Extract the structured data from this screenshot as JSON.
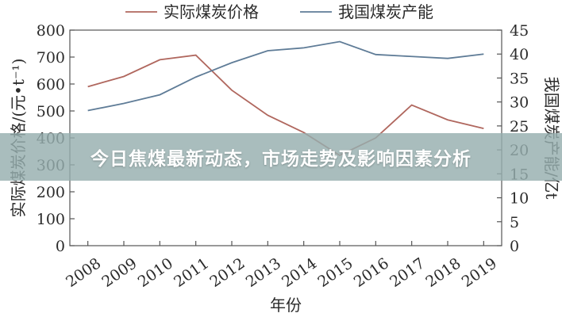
{
  "banner": {
    "title": "今日焦煤最新动态，市场走势及影响因素分析"
  },
  "chart_data": {
    "type": "line",
    "categories": [
      "2008",
      "2009",
      "2010",
      "2011",
      "2012",
      "2013",
      "2014",
      "2015",
      "2016",
      "2017",
      "2018",
      "2019"
    ],
    "series": [
      {
        "name": "实际煤炭价格",
        "axis": "left",
        "color": "#b0675e",
        "values": [
          590,
          628,
          690,
          707,
          577,
          484,
          420,
          335,
          400,
          522,
          467,
          435
        ]
      },
      {
        "name": "我国煤炭产能",
        "axis": "right",
        "color": "#5f7c97",
        "values": [
          28.2,
          29.7,
          31.5,
          35.2,
          38.2,
          40.7,
          41.3,
          42.6,
          39.9,
          39.5,
          39.1,
          40.0
        ]
      }
    ],
    "xlabel": "年份",
    "ylabel_left": "实际煤炭价格/(元•t⁻¹)",
    "ylabel_right": "我国煤炭产能/亿t",
    "ylim_left": [
      0,
      800
    ],
    "yticks_left": [
      "0",
      "100",
      "200",
      "300",
      "400",
      "500",
      "600",
      "700",
      "800"
    ],
    "ylim_right": [
      0,
      45
    ],
    "yticks_right": [
      "0",
      "5",
      "10",
      "15",
      "20",
      "25",
      "30",
      "35",
      "40",
      "45"
    ],
    "grid": false,
    "legend_position": "top"
  }
}
